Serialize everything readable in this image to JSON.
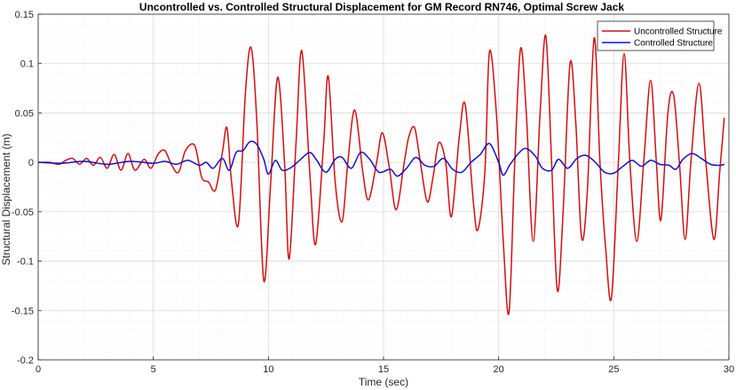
{
  "chart_data": {
    "type": "line",
    "title": "Uncontrolled vs. Controlled Structural Displacement for GM Record RN746, Optimal Screw Jack",
    "xlabel": "Time (sec)",
    "ylabel": "Structural Displacement (m)",
    "xlim": [
      0,
      30
    ],
    "ylim": [
      -0.2,
      0.15
    ],
    "x_ticks": [
      0,
      5,
      10,
      15,
      20,
      25,
      30
    ],
    "x_tick_labels": [
      "0",
      "5",
      "10",
      "15",
      "20",
      "25",
      "30"
    ],
    "y_ticks": [
      -0.2,
      -0.15,
      -0.1,
      -0.05,
      0,
      0.05,
      0.1,
      0.15
    ],
    "y_tick_labels": [
      "-0.2",
      "-0.15",
      "-0.1",
      "-0.05",
      "0",
      "0.05",
      "0.1",
      "0.15"
    ],
    "grid": true,
    "minor_grid": true,
    "legend_position": "top-right",
    "series": [
      {
        "name": "Uncontrolled Structure",
        "color": "#d01010",
        "points": [
          [
            0,
            0
          ],
          [
            0.5,
            0.0
          ],
          [
            0.9,
            -0.002
          ],
          [
            1.2,
            0.002
          ],
          [
            1.5,
            0.004
          ],
          [
            1.8,
            -0.002
          ],
          [
            2.1,
            0.004
          ],
          [
            2.4,
            -0.003
          ],
          [
            2.7,
            0.005
          ],
          [
            3.0,
            -0.006
          ],
          [
            3.3,
            0.008
          ],
          [
            3.6,
            -0.008
          ],
          [
            3.9,
            0.009
          ],
          [
            4.2,
            -0.008
          ],
          [
            4.6,
            0.003
          ],
          [
            4.9,
            -0.006
          ],
          [
            5.2,
            0.008
          ],
          [
            5.5,
            0.012
          ],
          [
            5.8,
            -0.003
          ],
          [
            6.1,
            -0.01
          ],
          [
            6.4,
            0.012
          ],
          [
            6.8,
            0.017
          ],
          [
            7.1,
            -0.015
          ],
          [
            7.4,
            -0.02
          ],
          [
            7.7,
            -0.028
          ],
          [
            8.0,
            0.01
          ],
          [
            8.2,
            0.035
          ],
          [
            8.4,
            -0.02
          ],
          [
            8.7,
            -0.062
          ],
          [
            9.0,
            0.07
          ],
          [
            9.25,
            0.116
          ],
          [
            9.5,
            0.04
          ],
          [
            9.8,
            -0.12
          ],
          [
            10.1,
            -0.02
          ],
          [
            10.4,
            0.086
          ],
          [
            10.7,
            0.0
          ],
          [
            10.9,
            -0.098
          ],
          [
            11.2,
            0.02
          ],
          [
            11.45,
            0.113
          ],
          [
            11.8,
            -0.012
          ],
          [
            12.05,
            -0.083
          ],
          [
            12.4,
            0.02
          ],
          [
            12.6,
            0.087
          ],
          [
            12.9,
            -0.02
          ],
          [
            13.2,
            -0.06
          ],
          [
            13.45,
            0.0
          ],
          [
            13.75,
            0.053
          ],
          [
            14.1,
            -0.01
          ],
          [
            14.35,
            -0.038
          ],
          [
            14.7,
            0.0
          ],
          [
            14.95,
            0.03
          ],
          [
            15.25,
            -0.005
          ],
          [
            15.55,
            -0.048
          ],
          [
            15.9,
            0.0
          ],
          [
            16.1,
            0.026
          ],
          [
            16.35,
            0.035
          ],
          [
            16.6,
            0.0
          ],
          [
            16.9,
            -0.04
          ],
          [
            17.15,
            -0.015
          ],
          [
            17.4,
            0.02
          ],
          [
            17.7,
            0.0
          ],
          [
            17.95,
            -0.055
          ],
          [
            18.3,
            0.028
          ],
          [
            18.55,
            0.058
          ],
          [
            18.9,
            -0.04
          ],
          [
            19.1,
            -0.068
          ],
          [
            19.4,
            -0.01
          ],
          [
            19.6,
            0.112
          ],
          [
            19.9,
            0.05
          ],
          [
            20.2,
            -0.08
          ],
          [
            20.45,
            -0.152
          ],
          [
            20.7,
            0.0
          ],
          [
            20.95,
            0.115
          ],
          [
            21.2,
            0.05
          ],
          [
            21.5,
            -0.08
          ],
          [
            21.8,
            0.05
          ],
          [
            22.05,
            0.128
          ],
          [
            22.3,
            0.0
          ],
          [
            22.55,
            -0.13
          ],
          [
            22.8,
            -0.05
          ],
          [
            23.1,
            0.1
          ],
          [
            23.35,
            0.04
          ],
          [
            23.6,
            -0.076
          ],
          [
            23.85,
            -0.03
          ],
          [
            24.15,
            0.126
          ],
          [
            24.4,
            0.0
          ],
          [
            24.65,
            -0.088
          ],
          [
            24.9,
            -0.137
          ],
          [
            25.2,
            0.0
          ],
          [
            25.45,
            0.11
          ],
          [
            25.7,
            0.0
          ],
          [
            26.0,
            -0.08
          ],
          [
            26.3,
            0.0
          ],
          [
            26.6,
            0.083
          ],
          [
            26.85,
            0.0
          ],
          [
            27.05,
            -0.058
          ],
          [
            27.35,
            0.05
          ],
          [
            27.6,
            0.068
          ],
          [
            27.85,
            0.0
          ],
          [
            28.1,
            -0.078
          ],
          [
            28.35,
            0.0
          ],
          [
            28.7,
            0.08
          ],
          [
            29.0,
            0.0
          ],
          [
            29.35,
            -0.078
          ],
          [
            29.6,
            -0.01
          ],
          [
            29.8,
            0.045
          ]
        ]
      },
      {
        "name": "Controlled Structure",
        "color": "#1010cc",
        "points": [
          [
            0,
            0
          ],
          [
            1.0,
            -0.001
          ],
          [
            2.0,
            0.001
          ],
          [
            3.0,
            -0.002
          ],
          [
            4.0,
            0.001
          ],
          [
            5.0,
            -0.001
          ],
          [
            5.5,
            0.001
          ],
          [
            6.0,
            -0.002
          ],
          [
            6.5,
            0.002
          ],
          [
            7.0,
            -0.003
          ],
          [
            7.3,
            0.0
          ],
          [
            7.6,
            -0.006
          ],
          [
            8.0,
            0.004
          ],
          [
            8.3,
            -0.008
          ],
          [
            8.6,
            0.01
          ],
          [
            8.9,
            0.012
          ],
          [
            9.2,
            0.021
          ],
          [
            9.5,
            0.018
          ],
          [
            9.8,
            0.003
          ],
          [
            10.0,
            -0.012
          ],
          [
            10.3,
            0.002
          ],
          [
            10.6,
            -0.008
          ],
          [
            11.0,
            -0.005
          ],
          [
            11.4,
            0.003
          ],
          [
            11.8,
            0.01
          ],
          [
            12.1,
            0.002
          ],
          [
            12.5,
            -0.01
          ],
          [
            12.9,
            0.003
          ],
          [
            13.2,
            0.005
          ],
          [
            13.6,
            -0.006
          ],
          [
            14.0,
            0.01
          ],
          [
            14.4,
            0.003
          ],
          [
            14.8,
            -0.01
          ],
          [
            15.3,
            -0.007
          ],
          [
            15.6,
            -0.014
          ],
          [
            16.0,
            -0.006
          ],
          [
            16.4,
            0.005
          ],
          [
            16.8,
            -0.003
          ],
          [
            17.2,
            -0.004
          ],
          [
            17.6,
            0.004
          ],
          [
            18.0,
            -0.007
          ],
          [
            18.4,
            -0.01
          ],
          [
            18.8,
            0.0
          ],
          [
            19.2,
            0.008
          ],
          [
            19.6,
            0.019
          ],
          [
            20.0,
            0.0
          ],
          [
            20.2,
            -0.013
          ],
          [
            20.5,
            -0.002
          ],
          [
            20.9,
            0.01
          ],
          [
            21.2,
            0.014
          ],
          [
            21.6,
            0.006
          ],
          [
            21.9,
            -0.006
          ],
          [
            22.3,
            -0.008
          ],
          [
            22.6,
            0.003
          ],
          [
            23.0,
            -0.006
          ],
          [
            23.4,
            0.004
          ],
          [
            23.8,
            0.007
          ],
          [
            24.2,
            0.0
          ],
          [
            24.6,
            -0.01
          ],
          [
            25.0,
            -0.011
          ],
          [
            25.4,
            -0.004
          ],
          [
            25.8,
            0.002
          ],
          [
            26.2,
            -0.004
          ],
          [
            26.6,
            0.002
          ],
          [
            27.0,
            -0.002
          ],
          [
            27.4,
            -0.003
          ],
          [
            27.7,
            -0.007
          ],
          [
            28.0,
            0.003
          ],
          [
            28.4,
            0.009
          ],
          [
            28.8,
            0.004
          ],
          [
            29.2,
            -0.002
          ],
          [
            29.6,
            -0.003
          ],
          [
            29.8,
            -0.002
          ]
        ]
      }
    ]
  }
}
